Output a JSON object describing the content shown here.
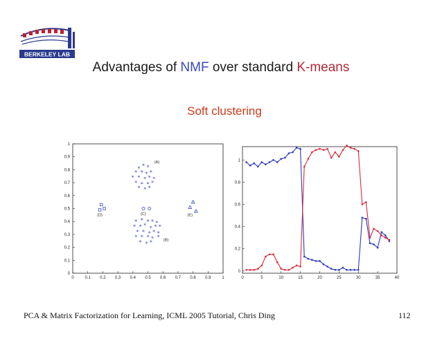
{
  "logo": {
    "text": "BERKELEY LAB",
    "colors": {
      "red": "#c02030",
      "blue": "#2a3a8c"
    }
  },
  "title": {
    "prefix": "Advantages of ",
    "nmf": "NMF",
    "middle": " over standard ",
    "kmeans": "K-means",
    "colors": {
      "nmf": "#3a48c0",
      "kmeans": "#b0283a"
    }
  },
  "subtitle": "Soft clustering",
  "footer": {
    "citation": "PCA & Matrix Factorization for Learning, ICML 2005 Tutorial, Chris Ding",
    "page": "112"
  },
  "chart_data": [
    {
      "type": "scatter",
      "xlim": [
        0,
        1
      ],
      "ylim": [
        0,
        1
      ],
      "xticks": [
        "0",
        "0.1",
        "0.2",
        "0.3",
        "0.4",
        "0.5",
        "0.6",
        "0.7",
        "0.8",
        "0.9",
        "1"
      ],
      "yticks": [
        "0",
        "0.1",
        "0.2",
        "0.3",
        "0.4",
        "0.5",
        "0.6",
        "0.7",
        "0.8",
        "0.9",
        "1"
      ],
      "color": "#3a48c0",
      "groups": [
        {
          "label": "(A)",
          "marker": "star",
          "label_at": [
            0.56,
            0.85
          ],
          "points": [
            [
              0.44,
              0.81
            ],
            [
              0.47,
              0.83
            ],
            [
              0.5,
              0.82
            ],
            [
              0.42,
              0.78
            ],
            [
              0.46,
              0.78
            ],
            [
              0.49,
              0.77
            ],
            [
              0.52,
              0.78
            ],
            [
              0.4,
              0.74
            ],
            [
              0.44,
              0.74
            ],
            [
              0.48,
              0.73
            ],
            [
              0.51,
              0.74
            ],
            [
              0.54,
              0.73
            ],
            [
              0.42,
              0.7
            ],
            [
              0.46,
              0.69
            ],
            [
              0.5,
              0.69
            ],
            [
              0.53,
              0.7
            ],
            [
              0.44,
              0.66
            ],
            [
              0.48,
              0.65
            ],
            [
              0.51,
              0.66
            ]
          ]
        },
        {
          "label": "(B)",
          "marker": "star",
          "label_at": [
            0.62,
            0.25
          ],
          "points": [
            [
              0.42,
              0.4
            ],
            [
              0.46,
              0.41
            ],
            [
              0.5,
              0.4
            ],
            [
              0.53,
              0.4
            ],
            [
              0.56,
              0.39
            ],
            [
              0.41,
              0.36
            ],
            [
              0.45,
              0.36
            ],
            [
              0.48,
              0.37
            ],
            [
              0.52,
              0.35
            ],
            [
              0.55,
              0.36
            ],
            [
              0.58,
              0.36
            ],
            [
              0.43,
              0.32
            ],
            [
              0.47,
              0.32
            ],
            [
              0.51,
              0.31
            ],
            [
              0.54,
              0.32
            ],
            [
              0.57,
              0.31
            ],
            [
              0.42,
              0.28
            ],
            [
              0.46,
              0.28
            ],
            [
              0.5,
              0.28
            ],
            [
              0.53,
              0.27
            ],
            [
              0.57,
              0.28
            ],
            [
              0.45,
              0.24
            ],
            [
              0.49,
              0.23
            ],
            [
              0.52,
              0.24
            ]
          ]
        },
        {
          "label": "(C)",
          "marker": "circle",
          "label_at": [
            0.47,
            0.45
          ],
          "points": [
            [
              0.47,
              0.5
            ],
            [
              0.51,
              0.5
            ]
          ]
        },
        {
          "label": "(D)",
          "marker": "square",
          "label_at": [
            0.18,
            0.44
          ],
          "points": [
            [
              0.19,
              0.53
            ],
            [
              0.18,
              0.49
            ],
            [
              0.21,
              0.5
            ]
          ]
        },
        {
          "label": "(E)",
          "marker": "triangle",
          "label_at": [
            0.78,
            0.44
          ],
          "points": [
            [
              0.8,
              0.55
            ],
            [
              0.78,
              0.51
            ],
            [
              0.82,
              0.48
            ]
          ]
        }
      ]
    },
    {
      "type": "line",
      "xlim": [
        0,
        40
      ],
      "ylim": [
        -0.02,
        1.12
      ],
      "xticks": [
        0,
        5,
        10,
        15,
        20,
        25,
        30,
        35,
        40
      ],
      "yticks": [
        0,
        0.2,
        0.4,
        0.6,
        0.8,
        1
      ],
      "series": [
        {
          "color": "#2a36c0",
          "x": [
            1,
            2,
            3,
            4,
            5,
            6,
            7,
            8,
            9,
            10,
            11,
            12,
            13,
            14,
            15,
            16,
            17,
            18,
            19,
            20,
            21,
            22,
            23,
            24,
            25,
            26,
            27,
            28,
            29,
            30,
            31,
            32,
            33,
            34,
            35,
            36,
            37,
            38
          ],
          "values": [
            0.98,
            0.95,
            0.97,
            0.94,
            0.98,
            0.96,
            0.98,
            1.0,
            0.98,
            1.01,
            1.02,
            1.06,
            1.07,
            1.11,
            1.1,
            0.13,
            0.11,
            0.1,
            0.09,
            0.09,
            0.06,
            0.04,
            0.02,
            0.01,
            0.01,
            0.03,
            0.01,
            0.01,
            0.01,
            0.01,
            0.48,
            0.47,
            0.25,
            0.24,
            0.21,
            0.35,
            0.32,
            0.27
          ]
        },
        {
          "color": "#d8283a",
          "x": [
            1,
            2,
            3,
            4,
            5,
            6,
            7,
            8,
            9,
            10,
            11,
            12,
            13,
            14,
            15,
            16,
            17,
            18,
            19,
            20,
            21,
            22,
            23,
            24,
            25,
            26,
            27,
            28,
            29,
            30,
            31,
            32,
            33,
            34,
            35,
            36,
            37,
            38
          ],
          "values": [
            0.01,
            0.01,
            0.01,
            0.02,
            0.05,
            0.13,
            0.15,
            0.15,
            0.08,
            0.02,
            0.01,
            0.01,
            0.03,
            0.05,
            0.04,
            0.94,
            1.01,
            1.07,
            1.09,
            1.1,
            1.09,
            1.1,
            1.02,
            1.07,
            1.03,
            1.09,
            1.13,
            1.11,
            1.1,
            1.08,
            0.6,
            0.62,
            0.3,
            0.38,
            0.36,
            0.32,
            0.3,
            0.28
          ]
        }
      ]
    }
  ]
}
